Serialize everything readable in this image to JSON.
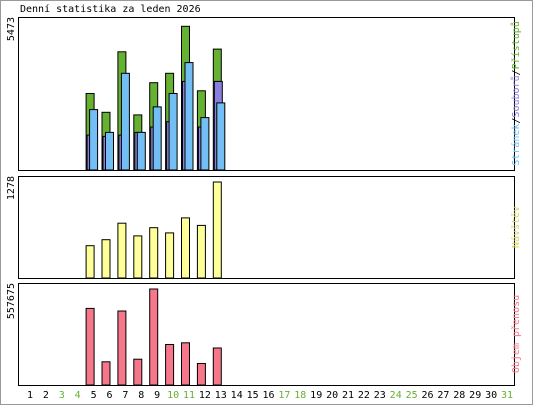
{
  "chart_data": {
    "type": "bar",
    "title": "Denní statistika za leden 2026",
    "days": [
      1,
      2,
      3,
      4,
      5,
      6,
      7,
      8,
      9,
      10,
      11,
      12,
      13,
      14,
      15,
      16,
      17,
      18,
      19,
      20,
      21,
      22,
      23,
      24,
      25,
      26,
      27,
      28,
      29,
      30,
      31
    ],
    "weekend_days": [
      3,
      4,
      10,
      11,
      17,
      18,
      24,
      25,
      31
    ],
    "colors": {
      "pristupu": "#66b032",
      "souboru": "#8a7fe0",
      "stranek": "#73bff5",
      "navstev": "#ffff99",
      "objem": "#f7778a",
      "weekend_label": "#66b032",
      "workday_label": "#000000"
    },
    "panels": [
      {
        "label": "Stránek/Souborů/Přístupů",
        "ymax": 5473,
        "ylabel": "5473",
        "series": [
          {
            "name": "Přístupů",
            "key": "pristupu",
            "values": {
              "5": 2850,
              "6": 2150,
              "7": 4400,
              "8": 2050,
              "9": 3250,
              "10": 3600,
              "11": 5350,
              "12": 2950,
              "13": 4500
            }
          },
          {
            "name": "Souborů",
            "key": "souboru",
            "values": {
              "5": 1300,
              "6": 1250,
              "7": 1300,
              "8": 1400,
              "9": 1600,
              "10": 1800,
              "11": 3300,
              "12": 1600,
              "13": 3300
            }
          },
          {
            "name": "Stránek",
            "key": "stranek",
            "values": {
              "5": 2250,
              "6": 1400,
              "7": 3600,
              "8": 1400,
              "9": 2350,
              "10": 2850,
              "11": 4000,
              "12": 1950,
              "13": 2500
            }
          }
        ]
      },
      {
        "label": "Návštěv",
        "ymax": 1278,
        "ylabel": "1278",
        "series": [
          {
            "name": "Návštěv",
            "key": "navstev",
            "values": {
              "5": 430,
              "6": 510,
              "7": 730,
              "8": 560,
              "9": 670,
              "10": 600,
              "11": 800,
              "12": 700,
              "13": 1278
            }
          }
        ]
      },
      {
        "label": "Objem přenosu",
        "ymax": 557675,
        "ylabel": "557675",
        "series": [
          {
            "name": "Objem přenosu",
            "key": "objem",
            "values": {
              "5": 445000,
              "6": 135000,
              "7": 430000,
              "8": 150000,
              "9": 557675,
              "10": 235000,
              "11": 245000,
              "12": 125000,
              "13": 215000
            }
          }
        ]
      }
    ]
  }
}
